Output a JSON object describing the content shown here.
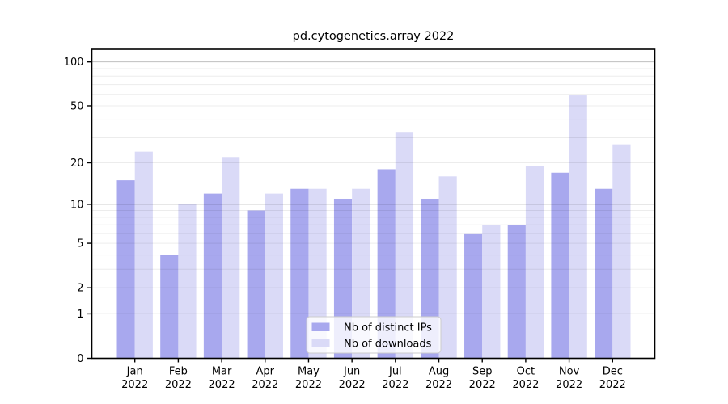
{
  "title": "pd.cytogenetics.array 2022",
  "chart_data": {
    "type": "bar",
    "title": "pd.cytogenetics.array 2022",
    "categories": [
      "Jan 2022",
      "Feb 2022",
      "Mar 2022",
      "Apr 2022",
      "May 2022",
      "Jun 2022",
      "Jul 2022",
      "Aug 2022",
      "Sep 2022",
      "Oct 2022",
      "Nov 2022",
      "Dec 2022"
    ],
    "x_tick_months": [
      "Jan",
      "Feb",
      "Mar",
      "Apr",
      "May",
      "Jun",
      "Jul",
      "Aug",
      "Sep",
      "Oct",
      "Nov",
      "Dec"
    ],
    "x_tick_year": "2022",
    "series": [
      {
        "name": "Nb of distinct IPs",
        "color": "#a8a8ee",
        "values": [
          15,
          4,
          12,
          9,
          13,
          11,
          18,
          11,
          6,
          7,
          17,
          13
        ]
      },
      {
        "name": "Nb of downloads",
        "color": "#dadaf7",
        "values": [
          24,
          10,
          22,
          12,
          13,
          13,
          33,
          16,
          7,
          19,
          59,
          27
        ]
      }
    ],
    "yscale": "log10(1+y)",
    "yticks": [
      0,
      1,
      2,
      5,
      10,
      20,
      50,
      100
    ],
    "ylim": [
      0,
      122
    ],
    "xlabel": "",
    "ylabel": "",
    "grid": "horizontal, drawn over bars; minor at 2-9 and 20-90, darker at 1, 10, 100",
    "legend_position": "inside bottom-center"
  },
  "legend": {
    "items": [
      {
        "label": "Nb of distinct IPs",
        "color": "#a8a8ee"
      },
      {
        "label": "Nb of downloads",
        "color": "#dadaf7"
      }
    ]
  },
  "colors": {
    "series_ips": "#a8a8ee",
    "series_downloads": "#dadaf7",
    "axis": "#000000",
    "grid_minor": "rgba(0,0,0,0.075)",
    "grid_major": "rgba(0,0,0,0.25)",
    "legend_border": "#cccccc",
    "legend_background": "rgba(255,255,255,0.8)"
  }
}
